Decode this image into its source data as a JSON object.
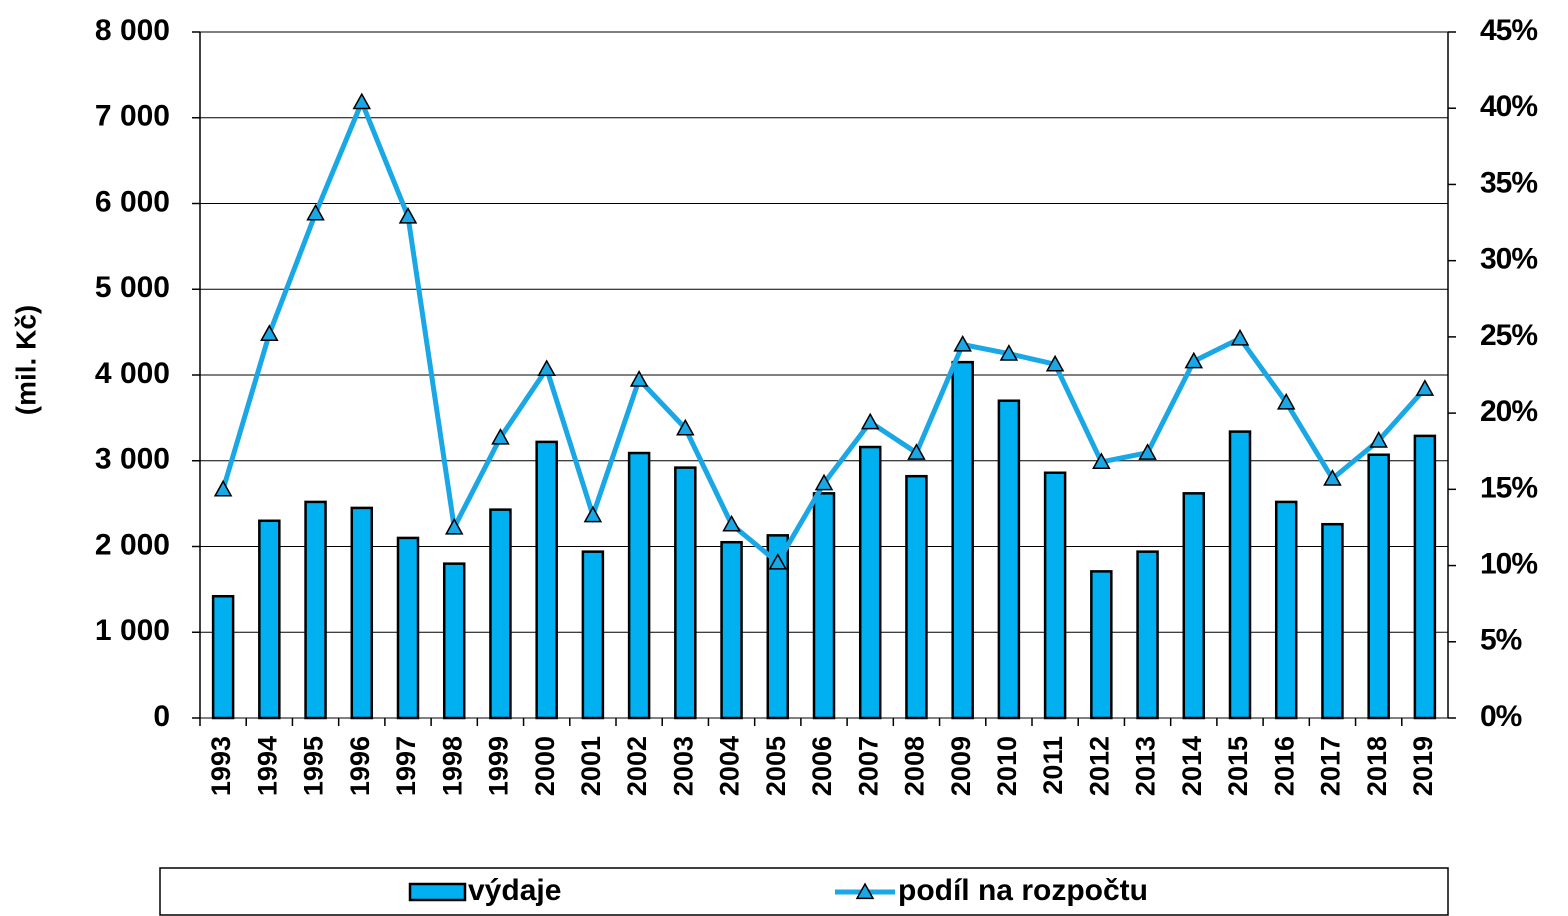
{
  "chart_data": {
    "type": "bar_line",
    "y_axis_label": "(mil. Kč)",
    "categories": [
      "1993",
      "1994",
      "1995",
      "1996",
      "1997",
      "1998",
      "1999",
      "2000",
      "2001",
      "2002",
      "2003",
      "2004",
      "2005",
      "2006",
      "2007",
      "2008",
      "2009",
      "2010",
      "2011",
      "2012",
      "2013",
      "2014",
      "2015",
      "2016",
      "2017",
      "2018",
      "2019"
    ],
    "series": [
      {
        "name": "výdaje",
        "type": "bar",
        "color": "#00b0f0",
        "axis": "y",
        "values": [
          1420,
          2300,
          2520,
          2450,
          2100,
          1800,
          2430,
          3220,
          1940,
          3090,
          2920,
          2050,
          2130,
          2620,
          3160,
          2820,
          4150,
          3700,
          2860,
          1710,
          1940,
          2620,
          3340,
          2520,
          2260,
          3070,
          3290
        ]
      },
      {
        "name": "podíl na rozpočtu",
        "type": "line",
        "color": "#1aa7e6",
        "axis": "y2",
        "values": [
          15.0,
          25.2,
          33.1,
          40.4,
          32.9,
          12.5,
          18.4,
          22.9,
          13.3,
          22.2,
          19.0,
          12.7,
          10.2,
          15.4,
          19.4,
          17.4,
          24.5,
          23.9,
          23.2,
          16.8,
          17.4,
          23.4,
          24.9,
          20.7,
          15.7,
          18.2,
          21.6
        ]
      }
    ],
    "ylim": [
      0,
      8000
    ],
    "yticks": [
      0,
      {
        "value": 1000,
        "label": "1 000"
      },
      {
        "value": 2000,
        "label": "2 000"
      },
      {
        "value": 3000,
        "label": "3 000"
      },
      {
        "value": 4000,
        "label": "4 000"
      },
      {
        "value": 5000,
        "label": "5 000"
      },
      {
        "value": 6000,
        "label": "6 000"
      },
      {
        "value": 7000,
        "label": "7 000"
      },
      {
        "value": 8000,
        "label": "8 000"
      }
    ],
    "y2lim": [
      0,
      45
    ],
    "y2ticks": [
      {
        "value": 0,
        "label": "0%"
      },
      {
        "value": 5,
        "label": "5%"
      },
      {
        "value": 10,
        "label": "10%"
      },
      {
        "value": 15,
        "label": "15%"
      },
      {
        "value": 20,
        "label": "20%"
      },
      {
        "value": 25,
        "label": "25%"
      },
      {
        "value": 30,
        "label": "30%"
      },
      {
        "value": 35,
        "label": "35%"
      },
      {
        "value": 40,
        "label": "40%"
      },
      {
        "value": 45,
        "label": "45%"
      }
    ],
    "grid": true,
    "legend": "bottom"
  }
}
